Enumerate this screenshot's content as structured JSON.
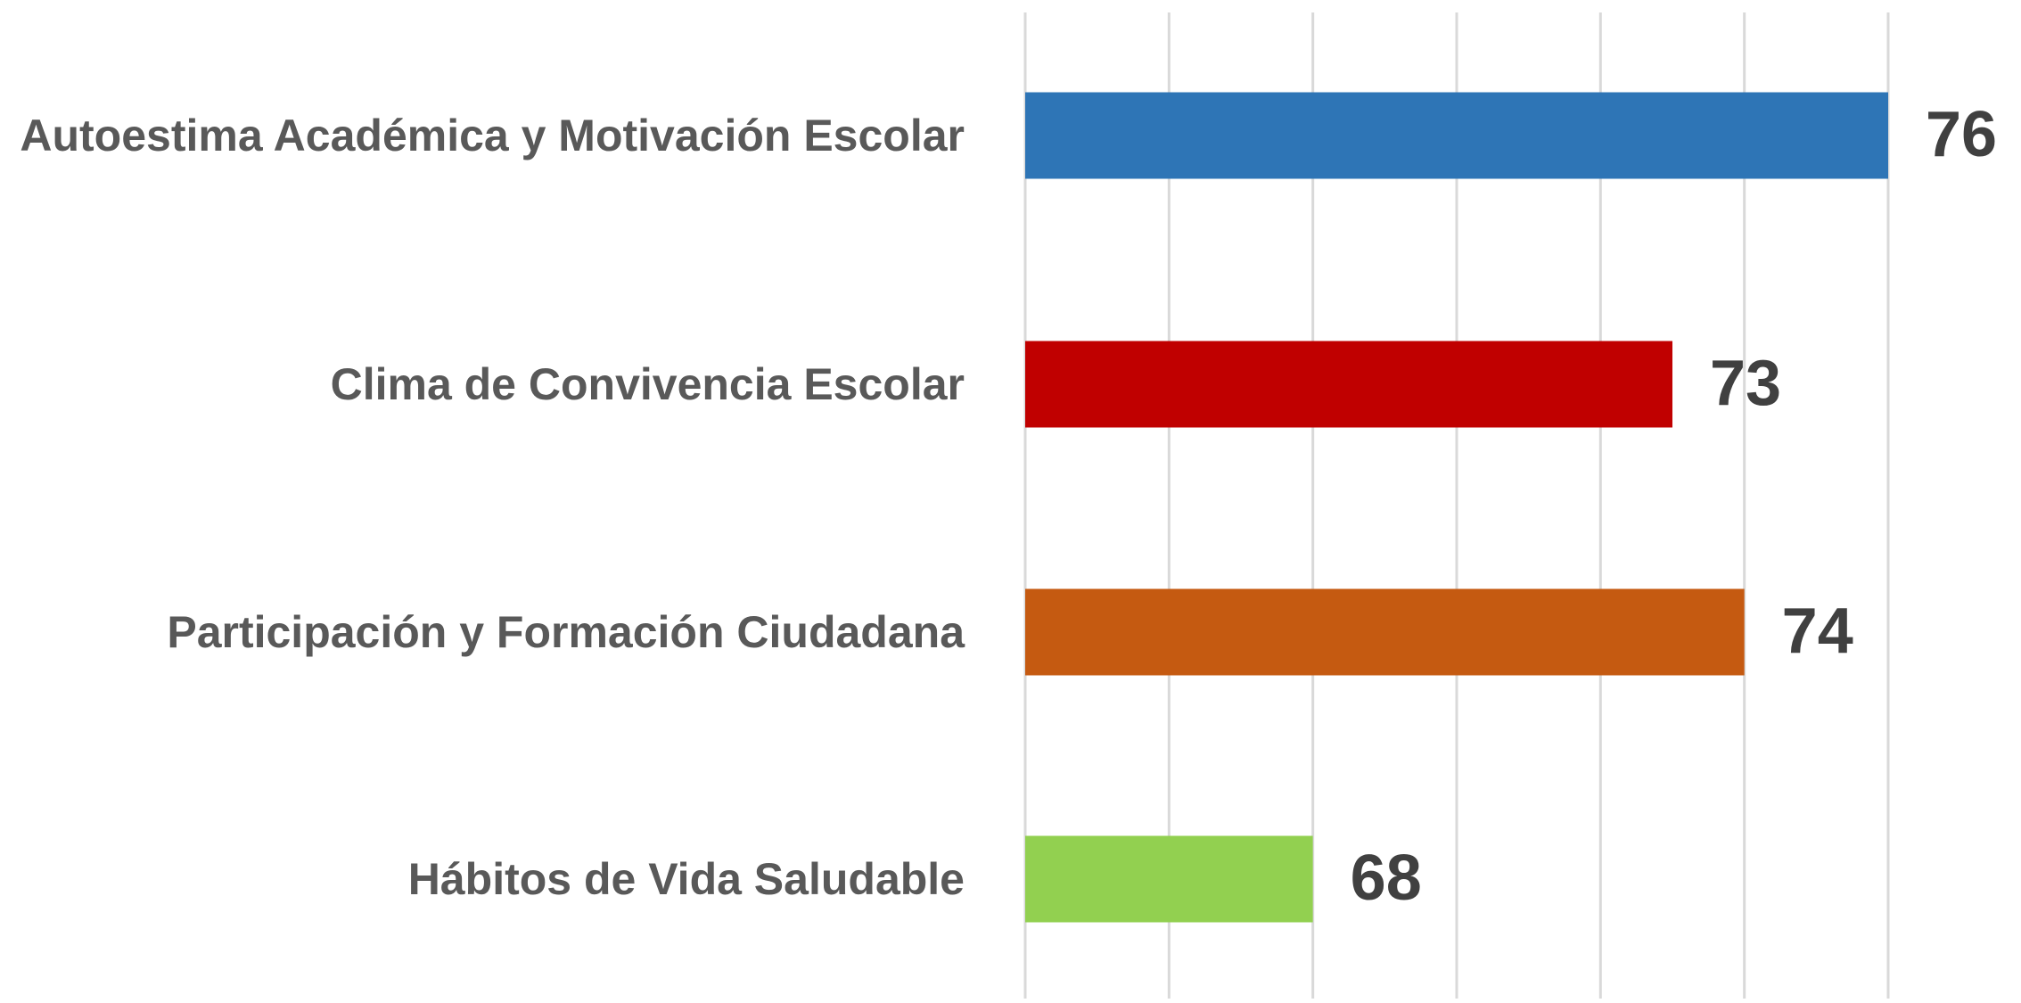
{
  "chart_data": {
    "type": "barh",
    "categories": [
      "Autoestima Académica y Motivación Escolar",
      "Clima de Convivencia Escolar",
      "Participación y Formación Ciudadana",
      "Hábitos de Vida Saludable"
    ],
    "values": [
      76,
      73,
      74,
      68
    ],
    "colors": [
      "#2e75b6",
      "#c00000",
      "#c55a11",
      "#92d050"
    ],
    "xlim": [
      64,
      76
    ],
    "xticks": [
      64,
      66,
      68,
      70,
      72,
      74,
      76
    ],
    "grid": true
  }
}
